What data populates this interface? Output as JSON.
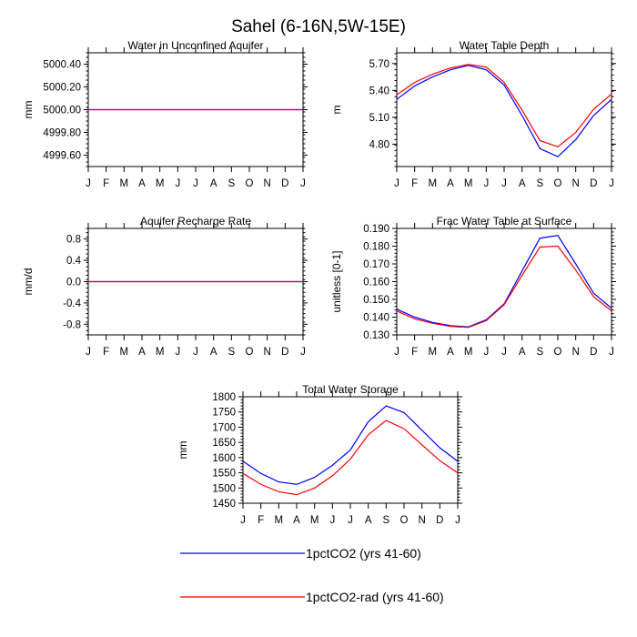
{
  "figure": {
    "title": "Sahel (6-16N,5W-15E)"
  },
  "legend": [
    {
      "name": "1pctCO2 (yrs 41-60)",
      "color": "#0000ff"
    },
    {
      "name": "1pctCO2-rad (yrs 41-60)",
      "color": "#ff0000"
    }
  ],
  "chart_data": [
    {
      "type": "line",
      "title": "Water in Unconfined Aquifer",
      "ylabel": "mm",
      "categories": [
        "J",
        "F",
        "M",
        "A",
        "M",
        "J",
        "J",
        "A",
        "S",
        "O",
        "N",
        "D",
        "J"
      ],
      "ylim": [
        4999.5,
        5000.5
      ],
      "yticks": [
        4999.6,
        4999.8,
        5000.0,
        5000.2,
        5000.4
      ],
      "ytick_labels": [
        "4999.60",
        "4999.80",
        "5000.00",
        "5000.20",
        "5000.40"
      ],
      "series": [
        {
          "name": "1pctCO2 (yrs 41-60)",
          "color": "#0000ff",
          "values": [
            5000,
            5000,
            5000,
            5000,
            5000,
            5000,
            5000,
            5000,
            5000,
            5000,
            5000,
            5000,
            5000
          ]
        },
        {
          "name": "1pctCO2-rad (yrs 41-60)",
          "color": "#ff0000",
          "values": [
            5000,
            5000,
            5000,
            5000,
            5000,
            5000,
            5000,
            5000,
            5000,
            5000,
            5000,
            5000,
            5000
          ]
        }
      ]
    },
    {
      "type": "line",
      "title": "Water Table Depth",
      "ylabel": "m",
      "categories": [
        "J",
        "F",
        "M",
        "A",
        "M",
        "J",
        "J",
        "A",
        "S",
        "O",
        "N",
        "D",
        "J"
      ],
      "ylim": [
        4.55,
        5.82
      ],
      "yticks": [
        4.8,
        5.1,
        5.4,
        5.7
      ],
      "ytick_labels": [
        "4.80",
        "5.10",
        "5.40",
        "5.70"
      ],
      "series": [
        {
          "name": "1pctCO2 (yrs 41-60)",
          "color": "#0000ff",
          "values": [
            5.3,
            5.45,
            5.55,
            5.63,
            5.68,
            5.63,
            5.46,
            5.12,
            4.75,
            4.66,
            4.85,
            5.12,
            5.3
          ]
        },
        {
          "name": "1pctCO2-rad (yrs 41-60)",
          "color": "#ff0000",
          "values": [
            5.35,
            5.49,
            5.58,
            5.65,
            5.69,
            5.66,
            5.49,
            5.18,
            4.84,
            4.77,
            4.93,
            5.19,
            5.36
          ]
        }
      ]
    },
    {
      "type": "line",
      "title": "Aquifer Recharge Rate",
      "ylabel": "mm/d",
      "categories": [
        "J",
        "F",
        "M",
        "A",
        "M",
        "J",
        "J",
        "A",
        "S",
        "O",
        "N",
        "D",
        "J"
      ],
      "ylim": [
        -1.0,
        1.0
      ],
      "yticks": [
        -0.8,
        -0.4,
        0.0,
        0.4,
        0.8
      ],
      "ytick_labels": [
        "-0.8",
        "-0.4",
        "0.0",
        "0.4",
        "0.8"
      ],
      "series": [
        {
          "name": "1pctCO2 (yrs 41-60)",
          "color": "#0000ff",
          "values": [
            0,
            0,
            0,
            0,
            0,
            0,
            0,
            0,
            0,
            0,
            0,
            0,
            0
          ]
        },
        {
          "name": "1pctCO2-rad (yrs 41-60)",
          "color": "#ff0000",
          "values": [
            0,
            0,
            0,
            0,
            0,
            0,
            0,
            0,
            0,
            0,
            0,
            0,
            0
          ]
        }
      ]
    },
    {
      "type": "line",
      "title": "Frac Water Table at Surface",
      "ylabel": "unitless [0-1]",
      "categories": [
        "J",
        "F",
        "M",
        "A",
        "M",
        "J",
        "J",
        "A",
        "S",
        "O",
        "N",
        "D",
        "J"
      ],
      "ylim": [
        0.13,
        0.19
      ],
      "yticks": [
        0.13,
        0.14,
        0.15,
        0.16,
        0.17,
        0.18,
        0.19
      ],
      "ytick_labels": [
        "0.130",
        "0.140",
        "0.150",
        "0.160",
        "0.170",
        "0.180",
        "0.190"
      ],
      "series": [
        {
          "name": "1pctCO2 (yrs 41-60)",
          "color": "#0000ff",
          "values": [
            0.1445,
            0.14,
            0.137,
            0.1352,
            0.1345,
            0.1385,
            0.1475,
            0.166,
            0.1845,
            0.186,
            0.17,
            0.1535,
            0.145
          ]
        },
        {
          "name": "1pctCO2-rad (yrs 41-60)",
          "color": "#ff0000",
          "values": [
            0.1435,
            0.139,
            0.1365,
            0.1348,
            0.1342,
            0.138,
            0.147,
            0.1635,
            0.1795,
            0.18,
            0.1665,
            0.1515,
            0.1435
          ]
        }
      ]
    },
    {
      "type": "line",
      "title": "Total Water Storage",
      "ylabel": "mm",
      "categories": [
        "J",
        "F",
        "M",
        "A",
        "M",
        "J",
        "J",
        "A",
        "S",
        "O",
        "N",
        "D",
        "J"
      ],
      "ylim": [
        1450,
        1800
      ],
      "yticks": [
        1450,
        1500,
        1550,
        1600,
        1650,
        1700,
        1750,
        1800
      ],
      "ytick_labels": [
        "1450",
        "1500",
        "1550",
        "1600",
        "1650",
        "1700",
        "1750",
        "1800"
      ],
      "series": [
        {
          "name": "1pctCO2 (yrs 41-60)",
          "color": "#0000ff",
          "values": [
            1588,
            1548,
            1520,
            1512,
            1535,
            1575,
            1625,
            1718,
            1770,
            1748,
            1690,
            1632,
            1588
          ]
        },
        {
          "name": "1pctCO2-rad (yrs 41-60)",
          "color": "#ff0000",
          "values": [
            1548,
            1512,
            1488,
            1478,
            1500,
            1540,
            1595,
            1675,
            1722,
            1695,
            1642,
            1590,
            1550
          ]
        }
      ]
    }
  ]
}
